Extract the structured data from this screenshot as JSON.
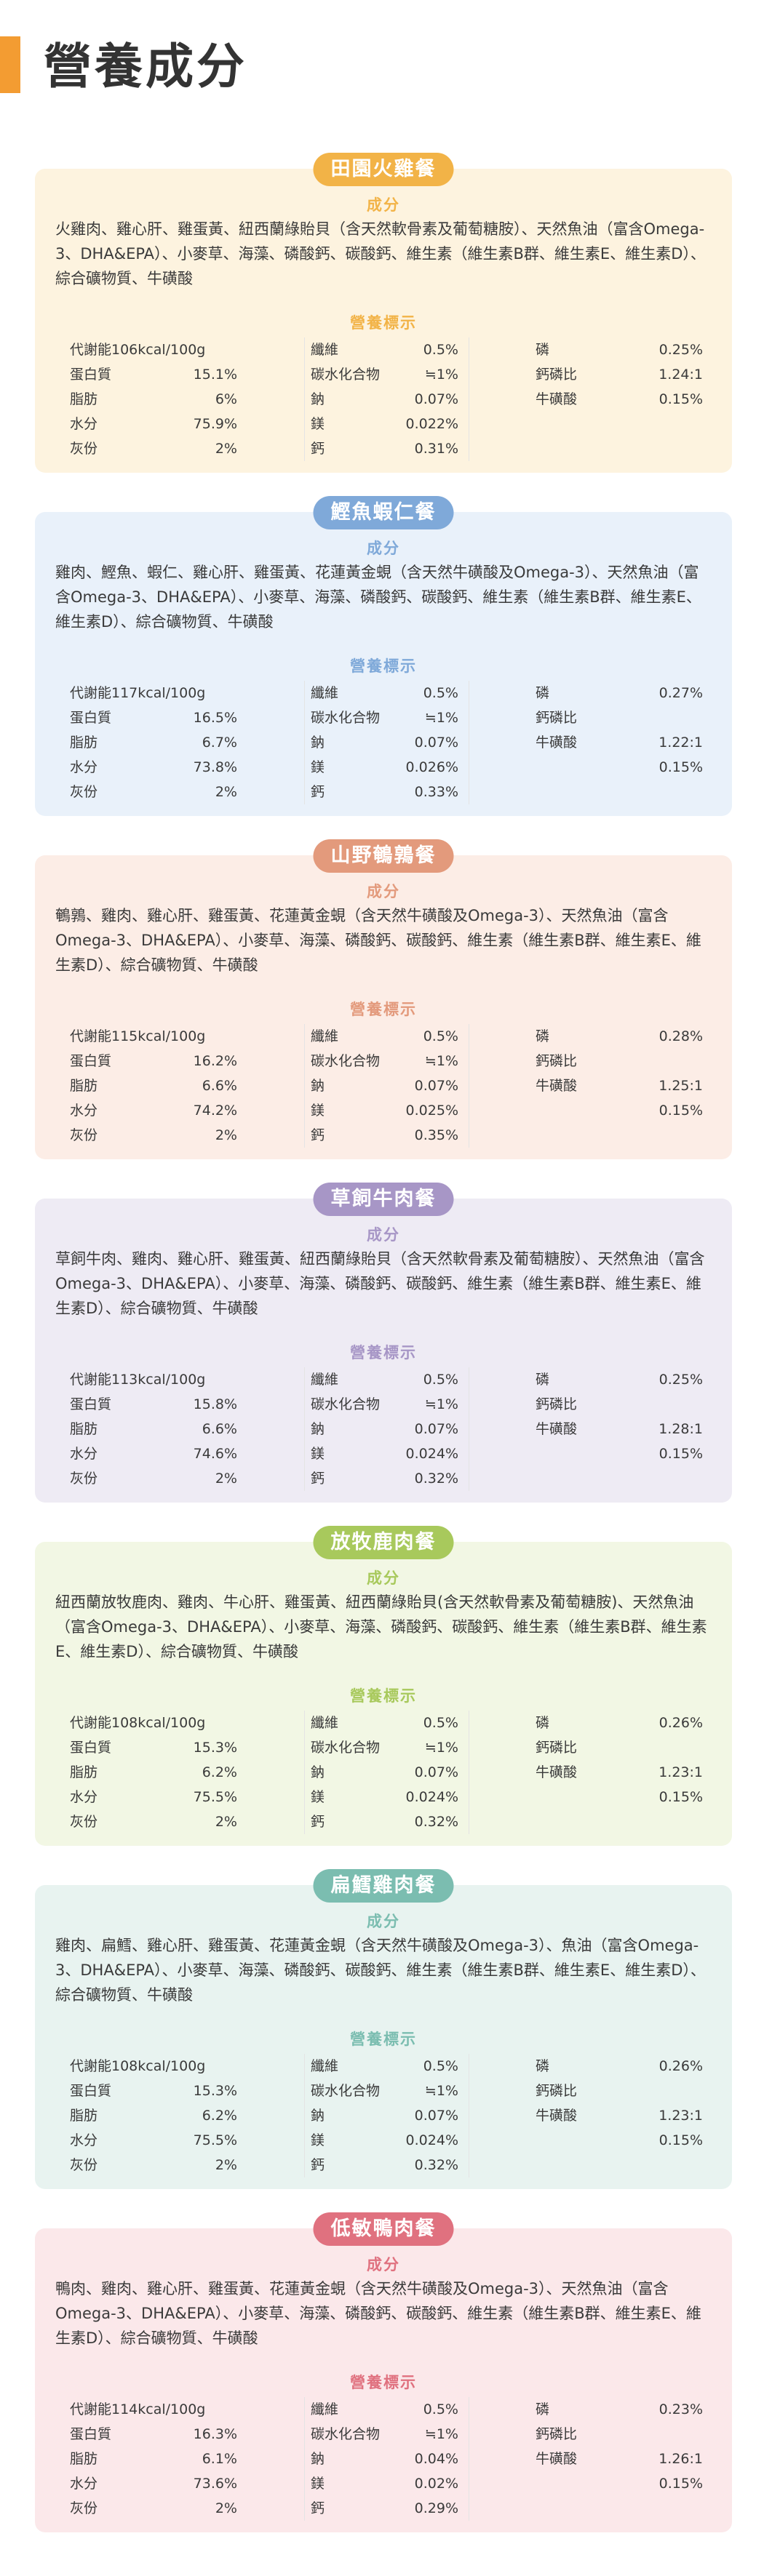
{
  "header": {
    "title": "營養成分"
  },
  "labels": {
    "ingredients_title": "成分",
    "nutrition_title": "營養標示"
  },
  "cards": [
    {
      "name": "田園火雞餐",
      "bg": "#fdf3df",
      "accent": "#f2b347",
      "ingredients": "火雞肉、雞心肝、雞蛋黃、紐西蘭綠貽貝（含天然軟骨素及葡萄糖胺）、天然魚油（富含Omega-3、DHA&EPA）、小麥草、海藻、磷酸鈣、碳酸鈣、維生素（維生素B群、維生素E、維生素D）、綜合礦物質、牛磺酸",
      "col1": [
        {
          "label": "代謝能106kcal/100g",
          "value": ""
        },
        {
          "label": "蛋白質",
          "value": "15.1%"
        },
        {
          "label": "脂肪",
          "value": "6%"
        },
        {
          "label": "水分",
          "value": "75.9%"
        },
        {
          "label": "灰份",
          "value": "2%"
        }
      ],
      "col2": [
        {
          "label": "纖維",
          "value": "0.5%"
        },
        {
          "label": "碳水化合物",
          "value": "≒1%"
        },
        {
          "label": "鈉",
          "value": "0.07%"
        },
        {
          "label": "鎂",
          "value": "0.022%"
        },
        {
          "label": "鈣",
          "value": "0.31%"
        }
      ],
      "col3": [
        {
          "label": "磷",
          "value": "0.25%"
        },
        {
          "label": "鈣磷比",
          "value": "1.24:1"
        },
        {
          "label": "牛磺酸",
          "value": "0.15%"
        },
        {
          "label": "",
          "value": ""
        },
        {
          "label": "",
          "value": ""
        }
      ]
    },
    {
      "name": "鰹魚蝦仁餐",
      "bg": "#e9f1fa",
      "accent": "#7fa9d9",
      "ingredients": "雞肉、鰹魚、蝦仁、雞心肝、雞蛋黃、花蓮黃金蜆（含天然牛磺酸及Omega-3）、天然魚油（富含Omega-3、DHA&EPA）、小麥草、海藻、磷酸鈣、碳酸鈣、維生素（維生素B群、維生素E、維生素D）、綜合礦物質、牛磺酸",
      "col1": [
        {
          "label": "代謝能117kcal/100g",
          "value": ""
        },
        {
          "label": "蛋白質",
          "value": "16.5%"
        },
        {
          "label": "脂肪",
          "value": "6.7%"
        },
        {
          "label": "水分",
          "value": "73.8%"
        },
        {
          "label": "灰份",
          "value": "2%"
        }
      ],
      "col2": [
        {
          "label": "纖維",
          "value": "0.5%"
        },
        {
          "label": "碳水化合物",
          "value": "≒1%"
        },
        {
          "label": "鈉",
          "value": "0.07%"
        },
        {
          "label": "鎂",
          "value": "0.026%"
        },
        {
          "label": "鈣",
          "value": "0.33%"
        }
      ],
      "col3": [
        {
          "label": "磷",
          "value": "0.27%"
        },
        {
          "label": "鈣磷比",
          "value": ""
        },
        {
          "label": "牛磺酸",
          "value": "1.22:1"
        },
        {
          "label": "",
          "value": "0.15%"
        },
        {
          "label": "",
          "value": ""
        }
      ]
    },
    {
      "name": "山野鵪鶉餐",
      "bg": "#fcede6",
      "accent": "#e39a7c",
      "ingredients": "鵪鶉、雞肉、雞心肝、雞蛋黃、花蓮黃金蜆（含天然牛磺酸及Omega-3）、天然魚油（富含Omega-3、DHA&EPA）、小麥草、海藻、磷酸鈣、碳酸鈣、維生素（維生素B群、維生素E、維生素D）、綜合礦物質、牛磺酸",
      "col1": [
        {
          "label": "代謝能115kcal/100g",
          "value": ""
        },
        {
          "label": "蛋白質",
          "value": "16.2%"
        },
        {
          "label": "脂肪",
          "value": "6.6%"
        },
        {
          "label": "水分",
          "value": "74.2%"
        },
        {
          "label": "灰份",
          "value": "2%"
        }
      ],
      "col2": [
        {
          "label": "纖維",
          "value": "0.5%"
        },
        {
          "label": "碳水化合物",
          "value": "≒1%"
        },
        {
          "label": "鈉",
          "value": "0.07%"
        },
        {
          "label": "鎂",
          "value": "0.025%"
        },
        {
          "label": "鈣",
          "value": "0.35%"
        }
      ],
      "col3": [
        {
          "label": "磷",
          "value": "0.28%"
        },
        {
          "label": "鈣磷比",
          "value": ""
        },
        {
          "label": "牛磺酸",
          "value": "1.25:1"
        },
        {
          "label": "",
          "value": "0.15%"
        },
        {
          "label": "",
          "value": ""
        }
      ]
    },
    {
      "name": "草飼牛肉餐",
      "bg": "#eeebf4",
      "accent": "#a796c6",
      "ingredients": "草飼牛肉、雞肉、雞心肝、雞蛋黃、紐西蘭綠貽貝（含天然軟骨素及葡萄糖胺）、天然魚油（富含Omega-3、DHA&EPA）、小麥草、海藻、磷酸鈣、碳酸鈣、維生素（維生素B群、維生素E、維生素D）、綜合礦物質、牛磺酸",
      "col1": [
        {
          "label": "代謝能113kcal/100g",
          "value": ""
        },
        {
          "label": "蛋白質",
          "value": "15.8%"
        },
        {
          "label": "脂肪",
          "value": "6.6%"
        },
        {
          "label": "水分",
          "value": "74.6%"
        },
        {
          "label": "灰份",
          "value": "2%"
        }
      ],
      "col2": [
        {
          "label": "纖維",
          "value": "0.5%"
        },
        {
          "label": "碳水化合物",
          "value": "≒1%"
        },
        {
          "label": "鈉",
          "value": "0.07%"
        },
        {
          "label": "鎂",
          "value": "0.024%"
        },
        {
          "label": "鈣",
          "value": "0.32%"
        }
      ],
      "col3": [
        {
          "label": "磷",
          "value": "0.25%"
        },
        {
          "label": "鈣磷比",
          "value": ""
        },
        {
          "label": "牛磺酸",
          "value": "1.28:1"
        },
        {
          "label": "",
          "value": "0.15%"
        },
        {
          "label": "",
          "value": ""
        }
      ]
    },
    {
      "name": "放牧鹿肉餐",
      "bg": "#f2f7e4",
      "accent": "#a8c95c",
      "ingredients": "紐西蘭放牧鹿肉、雞肉、牛心肝、雞蛋黃、紐西蘭綠貽貝(含天然軟骨素及葡萄糖胺)、天然魚油（富含Omega-3、DHA&EPA）、小麥草、海藻、磷酸鈣、碳酸鈣、維生素（維生素B群、維生素E、維生素D）、綜合礦物質、牛磺酸",
      "col1": [
        {
          "label": "代謝能108kcal/100g",
          "value": ""
        },
        {
          "label": "蛋白質",
          "value": "15.3%"
        },
        {
          "label": "脂肪",
          "value": "6.2%"
        },
        {
          "label": "水分",
          "value": "75.5%"
        },
        {
          "label": "灰份",
          "value": "2%"
        }
      ],
      "col2": [
        {
          "label": "纖維",
          "value": "0.5%"
        },
        {
          "label": "碳水化合物",
          "value": "≒1%"
        },
        {
          "label": "鈉",
          "value": "0.07%"
        },
        {
          "label": "鎂",
          "value": "0.024%"
        },
        {
          "label": "鈣",
          "value": "0.32%"
        }
      ],
      "col3": [
        {
          "label": "磷",
          "value": "0.26%"
        },
        {
          "label": "鈣磷比",
          "value": ""
        },
        {
          "label": "牛磺酸",
          "value": "1.23:1"
        },
        {
          "label": "",
          "value": "0.15%"
        },
        {
          "label": "",
          "value": ""
        }
      ]
    },
    {
      "name": "扁鱈雞肉餐",
      "bg": "#e8f3f0",
      "accent": "#7bbdb0",
      "ingredients": "雞肉、扁鱈、雞心肝、雞蛋黃、花蓮黃金蜆（含天然牛磺酸及Omega-3）、魚油（富含Omega-3、DHA&EPA）、小麥草、海藻、磷酸鈣、碳酸鈣、維生素（維生素B群、維生素E、維生素D）、綜合礦物質、牛磺酸",
      "col1": [
        {
          "label": "代謝能108kcal/100g",
          "value": ""
        },
        {
          "label": "蛋白質",
          "value": "15.3%"
        },
        {
          "label": "脂肪",
          "value": "6.2%"
        },
        {
          "label": "水分",
          "value": "75.5%"
        },
        {
          "label": "灰份",
          "value": "2%"
        }
      ],
      "col2": [
        {
          "label": "纖維",
          "value": "0.5%"
        },
        {
          "label": "碳水化合物",
          "value": "≒1%"
        },
        {
          "label": "鈉",
          "value": "0.07%"
        },
        {
          "label": "鎂",
          "value": "0.024%"
        },
        {
          "label": "鈣",
          "value": "0.32%"
        }
      ],
      "col3": [
        {
          "label": "磷",
          "value": "0.26%"
        },
        {
          "label": "鈣磷比",
          "value": ""
        },
        {
          "label": "牛磺酸",
          "value": "1.23:1"
        },
        {
          "label": "",
          "value": "0.15%"
        },
        {
          "label": "",
          "value": ""
        }
      ]
    },
    {
      "name": "低敏鴨肉餐",
      "bg": "#fbe8ea",
      "accent": "#e0717f",
      "ingredients": "鴨肉、雞肉、雞心肝、雞蛋黃、花蓮黃金蜆（含天然牛磺酸及Omega-3）、天然魚油（富含Omega-3、DHA&EPA）、小麥草、海藻、磷酸鈣、碳酸鈣、維生素（維生素B群、維生素E、維生素D）、綜合礦物質、牛磺酸",
      "col1": [
        {
          "label": "代謝能114kcal/100g",
          "value": ""
        },
        {
          "label": "蛋白質",
          "value": "16.3%"
        },
        {
          "label": "脂肪",
          "value": "6.1%"
        },
        {
          "label": "水分",
          "value": "73.6%"
        },
        {
          "label": "灰份",
          "value": "2%"
        }
      ],
      "col2": [
        {
          "label": "纖維",
          "value": "0.5%"
        },
        {
          "label": "碳水化合物",
          "value": "≒1%"
        },
        {
          "label": "鈉",
          "value": "0.04%"
        },
        {
          "label": "鎂",
          "value": "0.02%"
        },
        {
          "label": "鈣",
          "value": "0.29%"
        }
      ],
      "col3": [
        {
          "label": "磷",
          "value": "0.23%"
        },
        {
          "label": "鈣磷比",
          "value": ""
        },
        {
          "label": "牛磺酸",
          "value": "1.26:1"
        },
        {
          "label": "",
          "value": "0.15%"
        },
        {
          "label": "",
          "value": ""
        }
      ]
    }
  ]
}
